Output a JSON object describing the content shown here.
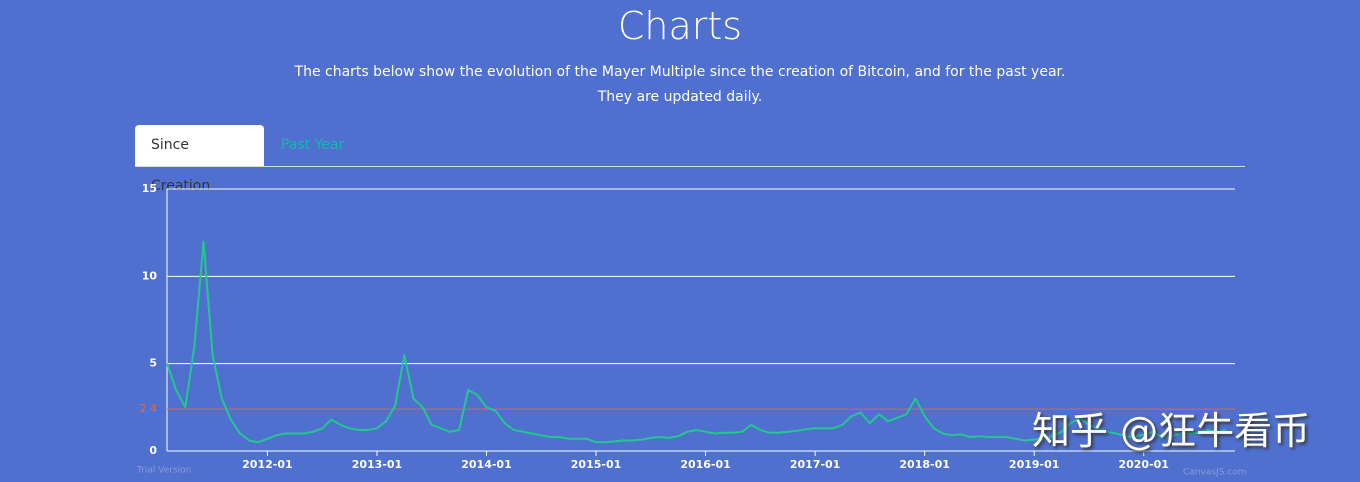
{
  "header": {
    "title": "Charts",
    "subtitle": [
      "The charts below show the evolution of the Mayer Multiple since the creation of Bitcoin, and for the past year.",
      "They are updated daily."
    ]
  },
  "tabs": [
    {
      "label": "Since Creation",
      "active": true
    },
    {
      "label": "Past Year",
      "active": false
    }
  ],
  "chart_data": {
    "type": "line",
    "color": "#22c88e",
    "x": [
      "2011-02",
      "2011-03",
      "2011-04",
      "2011-05",
      "2011-06",
      "2011-07",
      "2011-08",
      "2011-09",
      "2011-10",
      "2011-11",
      "2011-12",
      "2012-01",
      "2012-02",
      "2012-03",
      "2012-04",
      "2012-05",
      "2012-06",
      "2012-07",
      "2012-08",
      "2012-09",
      "2012-10",
      "2012-11",
      "2012-12",
      "2013-01",
      "2013-02",
      "2013-03",
      "2013-04",
      "2013-05",
      "2013-06",
      "2013-07",
      "2013-08",
      "2013-09",
      "2013-10",
      "2013-11",
      "2013-12",
      "2014-01",
      "2014-02",
      "2014-03",
      "2014-04",
      "2014-05",
      "2014-06",
      "2014-07",
      "2014-08",
      "2014-09",
      "2014-10",
      "2014-11",
      "2014-12",
      "2015-01",
      "2015-02",
      "2015-03",
      "2015-04",
      "2015-05",
      "2015-06",
      "2015-07",
      "2015-08",
      "2015-09",
      "2015-10",
      "2015-11",
      "2015-12",
      "2016-01",
      "2016-02",
      "2016-03",
      "2016-04",
      "2016-05",
      "2016-06",
      "2016-07",
      "2016-08",
      "2016-09",
      "2016-10",
      "2016-11",
      "2016-12",
      "2017-01",
      "2017-02",
      "2017-03",
      "2017-04",
      "2017-05",
      "2017-06",
      "2017-07",
      "2017-08",
      "2017-09",
      "2017-10",
      "2017-11",
      "2017-12",
      "2018-01",
      "2018-02",
      "2018-03",
      "2018-04",
      "2018-05",
      "2018-06",
      "2018-07",
      "2018-08",
      "2018-09",
      "2018-10",
      "2018-11",
      "2018-12",
      "2019-01",
      "2019-02",
      "2019-03",
      "2019-04",
      "2019-05",
      "2019-06",
      "2019-07",
      "2019-08",
      "2019-09",
      "2019-10",
      "2019-11",
      "2019-12",
      "2020-01",
      "2020-02",
      "2020-03",
      "2020-04",
      "2020-05",
      "2020-06",
      "2020-07",
      "2020-08",
      "2020-09",
      "2020-10"
    ],
    "values": [
      5,
      3.5,
      2.5,
      6,
      12,
      5.5,
      3,
      1.8,
      1,
      0.6,
      0.5,
      0.7,
      0.9,
      1,
      1,
      1,
      1.1,
      1.3,
      1.8,
      1.5,
      1.3,
      1.2,
      1.2,
      1.3,
      1.7,
      2.6,
      5.5,
      3,
      2.5,
      1.5,
      1.3,
      1.1,
      1.2,
      3.5,
      3.2,
      2.5,
      2.3,
      1.6,
      1.2,
      1.1,
      1,
      0.9,
      0.8,
      0.8,
      0.7,
      0.7,
      0.7,
      0.5,
      0.5,
      0.55,
      0.6,
      0.6,
      0.65,
      0.75,
      0.8,
      0.75,
      0.85,
      1.1,
      1.2,
      1.1,
      1,
      1.05,
      1.05,
      1.1,
      1.5,
      1.2,
      1.05,
      1.05,
      1.1,
      1.15,
      1.25,
      1.3,
      1.3,
      1.3,
      1.5,
      2,
      2.2,
      1.6,
      2.1,
      1.7,
      1.9,
      2.1,
      3,
      2,
      1.3,
      1,
      0.9,
      0.95,
      0.8,
      0.85,
      0.8,
      0.8,
      0.8,
      0.7,
      0.6,
      0.65,
      0.7,
      0.85,
      1.1,
      1.6,
      1.9,
      1.5,
      1.3,
      1.1,
      1,
      0.85,
      0.8,
      0.95,
      1.1,
      0.8,
      0.85,
      1,
      1,
      1.05,
      1.2,
      1.1,
      1.2
    ],
    "xlim": [
      "2011-02",
      "2020-11"
    ],
    "xticks": [
      "2012-01",
      "2013-01",
      "2014-01",
      "2015-01",
      "2016-01",
      "2017-01",
      "2018-01",
      "2019-01",
      "2020-01"
    ],
    "ylim": [
      0,
      15
    ],
    "yticks": [
      0,
      5,
      10,
      15
    ],
    "grid": true,
    "reference_line": {
      "value": 2.4,
      "color": "#e8643a"
    }
  },
  "credits": [
    "Trial Version",
    "CanvasJS.com"
  ],
  "watermark": "知乎 @狂牛看币"
}
